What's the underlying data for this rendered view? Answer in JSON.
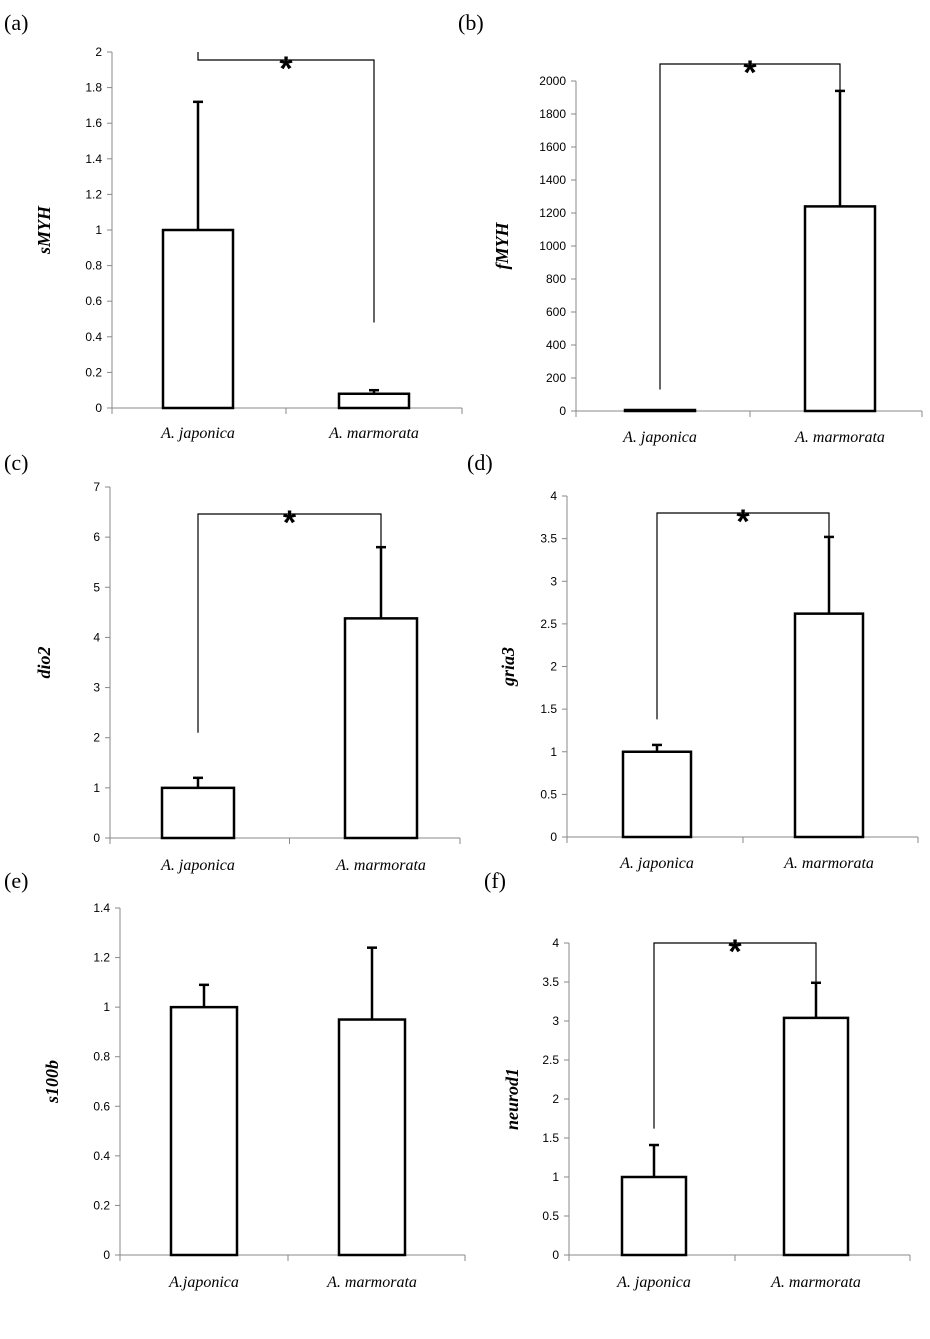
{
  "chart_data": [
    {
      "type": "bar",
      "panel": "(a)",
      "ylabel": "sMYH",
      "categories": [
        "A. japonica",
        "A. marmorata"
      ],
      "values": [
        1.0,
        0.08
      ],
      "errors": [
        0.72,
        0.02
      ],
      "yticks": [
        "0",
        "0.2",
        "0.4",
        "0.6",
        "0.8",
        "1",
        "1.2",
        "1.4",
        "1.6",
        "1.8",
        "2"
      ],
      "ylim": [
        0,
        2
      ],
      "significance": "*",
      "bracket_drop": [
        2.0,
        0.48
      ]
    },
    {
      "type": "bar",
      "panel": "(b)",
      "ylabel": "fMYH",
      "categories": [
        "A. japonica",
        "A. marmorata"
      ],
      "values": [
        1,
        1240
      ],
      "errors": [
        0,
        700
      ],
      "yticks": [
        "0",
        "200",
        "400",
        "600",
        "800",
        "1000",
        "1200",
        "1400",
        "1600",
        "1800",
        "2000"
      ],
      "ylim": [
        0,
        2000
      ],
      "significance": "*",
      "bracket_drop": [
        130,
        1940
      ]
    },
    {
      "type": "bar",
      "panel": "(c)",
      "ylabel": "dio2",
      "categories": [
        "A. japonica",
        "A. marmorata"
      ],
      "values": [
        1.0,
        4.38
      ],
      "errors": [
        0.2,
        1.42
      ],
      "yticks": [
        "0",
        "1",
        "2",
        "3",
        "4",
        "5",
        "6",
        "7"
      ],
      "ylim": [
        0,
        7
      ],
      "significance": "*",
      "bracket_drop": [
        2.1,
        5.8
      ]
    },
    {
      "type": "bar",
      "panel": "(d)",
      "ylabel": "gria3",
      "categories": [
        "A. japonica",
        "A. marmorata"
      ],
      "values": [
        1.0,
        2.62
      ],
      "errors": [
        0.08,
        0.9
      ],
      "yticks": [
        "0",
        "0.5",
        "1",
        "1.5",
        "2",
        "2.5",
        "3",
        "3.5",
        "4"
      ],
      "ylim": [
        0,
        4
      ],
      "significance": "*",
      "bracket_drop": [
        1.38,
        3.52
      ]
    },
    {
      "type": "bar",
      "panel": "(e)",
      "ylabel": "s100b",
      "categories": [
        "A.japonica",
        "A. marmorata"
      ],
      "values": [
        1.0,
        0.95
      ],
      "errors": [
        0.09,
        0.29
      ],
      "yticks": [
        "0",
        "0.2",
        "0.4",
        "0.6",
        "0.8",
        "1",
        "1.2",
        "1.4"
      ],
      "ylim": [
        0,
        1.4
      ],
      "significance": ""
    },
    {
      "type": "bar",
      "panel": "(f)",
      "ylabel": "neurod1",
      "categories": [
        "A. japonica",
        "A. marmorata"
      ],
      "values": [
        1.0,
        3.04
      ],
      "errors": [
        0.41,
        0.45
      ],
      "yticks": [
        "0",
        "0.5",
        "1",
        "1.5",
        "2",
        "2.5",
        "3",
        "3.5",
        "4"
      ],
      "ylim": [
        0,
        4
      ],
      "significance": "*",
      "bracket_drop": [
        1.62,
        3.49
      ]
    }
  ]
}
